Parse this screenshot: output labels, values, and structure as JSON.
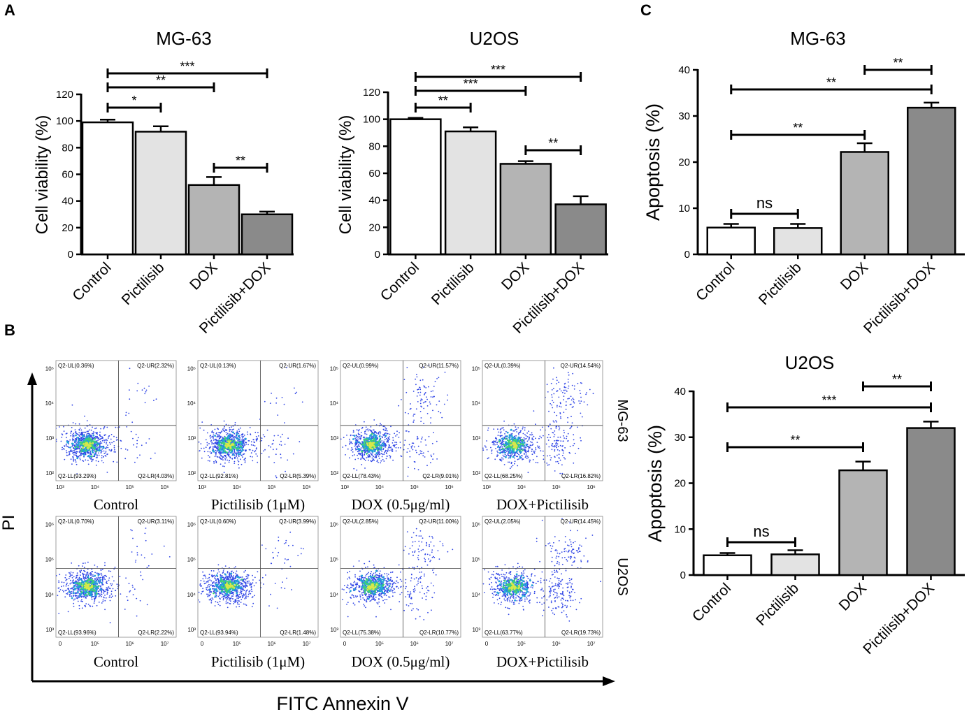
{
  "panel_letters": {
    "a": "A",
    "b": "B",
    "c": "C"
  },
  "flow": {
    "y_axis_label": "PI",
    "x_axis_label": "FITC Annexin V",
    "rows": [
      {
        "cell_line": "MG-63",
        "x_ticks": [
          "10³",
          "10⁴",
          "10⁵",
          "10⁶"
        ],
        "y_ticks": [
          "10²",
          "10³",
          "10⁴",
          "10⁵"
        ],
        "panels": [
          {
            "label": "Control",
            "UL": "Q2-UL(0.36%)",
            "UR": "Q2-UR(2.32%)",
            "LL": "Q2-LL(93.29%)",
            "LR": "Q2-LR(4.03%)"
          },
          {
            "label": "Pictilisib (1μM)",
            "UL": "Q2-UL(0.13%)",
            "UR": "Q2-UR(1.67%)",
            "LL": "Q2-LL(92.81%)",
            "LR": "Q2-LR(5.39%)"
          },
          {
            "label": "DOX (0.5μg/ml)",
            "UL": "Q2-UL(0.99%)",
            "UR": "Q2-UR(11.57%)",
            "LL": "Q2-LL(78.43%)",
            "LR": "Q2-LR(9.01%)"
          },
          {
            "label": "DOX+Pictilisib",
            "UL": "Q2-UL(0.39%)",
            "UR": "Q2-UR(14.54%)",
            "LL": "Q2-LL(68.25%)",
            "LR": "Q2-LR(16.82%)"
          }
        ]
      },
      {
        "cell_line": "U2OS",
        "x_ticks": [
          "0",
          "10⁵",
          "10⁶",
          "10⁷"
        ],
        "y_ticks": [
          "10³",
          "10⁴",
          "10⁵",
          "10⁶"
        ],
        "panels": [
          {
            "label": "Control",
            "UL": "Q2-UL(0.70%)",
            "UR": "Q2-UR(3.11%)",
            "LL": "Q2-LL(93.96%)",
            "LR": "Q2-LR(2.22%)"
          },
          {
            "label": "Pictilisib (1μM)",
            "UL": "Q2-UL(0.60%)",
            "UR": "Q2-UR(3.99%)",
            "LL": "Q2-LL(93.94%)",
            "LR": "Q2-LR(1.48%)"
          },
          {
            "label": "DOX (0.5μg/ml)",
            "UL": "Q2-UL(2.85%)",
            "UR": "Q2-UR(11.00%)",
            "LL": "Q2-LL(75.38%)",
            "LR": "Q2-LR(10.77%)"
          },
          {
            "label": "DOX+Pictilisib",
            "UL": "Q2-UL(2.05%)",
            "UR": "Q2-UR(14.45%)",
            "LL": "Q2-LL(63.77%)",
            "LR": "Q2-LR(19.73%)"
          }
        ]
      }
    ]
  },
  "chart_data": [
    {
      "panel": "A",
      "type": "bar",
      "title": "MG-63",
      "xlabel": "",
      "ylabel": "Cell viability (%)",
      "categories": [
        "Control",
        "Pictilisib",
        "DOX",
        "Pictilisib+DOX"
      ],
      "values": [
        99,
        92,
        52,
        30
      ],
      "errors": [
        2,
        4,
        6,
        2
      ],
      "ylim": [
        0,
        120
      ],
      "yticks": [
        0,
        20,
        40,
        60,
        80,
        100,
        120
      ],
      "bar_colors": [
        "#ffffff",
        "#e3e3e3",
        "#b4b4b4",
        "#8a8a8a"
      ],
      "significance": [
        {
          "from": 0,
          "to": 1,
          "label": "*"
        },
        {
          "from": 0,
          "to": 2,
          "label": "**"
        },
        {
          "from": 0,
          "to": 3,
          "label": "***"
        },
        {
          "from": 2,
          "to": 3,
          "label": "**"
        }
      ]
    },
    {
      "panel": "A",
      "type": "bar",
      "title": "U2OS",
      "xlabel": "",
      "ylabel": "Cell viability (%)",
      "categories": [
        "Control",
        "Pictilisib",
        "DOX",
        "Pictilisib+DOX"
      ],
      "values": [
        100,
        91,
        67,
        37
      ],
      "errors": [
        1,
        3,
        2,
        6
      ],
      "ylim": [
        0,
        120
      ],
      "yticks": [
        0,
        20,
        40,
        60,
        80,
        100,
        120
      ],
      "bar_colors": [
        "#ffffff",
        "#e3e3e3",
        "#b4b4b4",
        "#8a8a8a"
      ],
      "significance": [
        {
          "from": 0,
          "to": 1,
          "label": "**"
        },
        {
          "from": 0,
          "to": 2,
          "label": "***"
        },
        {
          "from": 0,
          "to": 3,
          "label": "***"
        },
        {
          "from": 2,
          "to": 3,
          "label": "**"
        }
      ]
    },
    {
      "panel": "C",
      "type": "bar",
      "title": "MG-63",
      "xlabel": "",
      "ylabel": "Apoptosis (%)",
      "categories": [
        "Control",
        "Pictilisib",
        "DOX",
        "Pictilisib+DOX"
      ],
      "values": [
        5.8,
        5.7,
        22.2,
        31.8
      ],
      "errors": [
        0.8,
        0.9,
        1.9,
        1.1
      ],
      "ylim": [
        0,
        40
      ],
      "yticks": [
        0,
        10,
        20,
        30,
        40
      ],
      "bar_colors": [
        "#ffffff",
        "#e3e3e3",
        "#b4b4b4",
        "#8a8a8a"
      ],
      "significance": [
        {
          "from": 0,
          "to": 1,
          "label": "ns"
        },
        {
          "from": 0,
          "to": 2,
          "label": "**"
        },
        {
          "from": 0,
          "to": 3,
          "label": "**"
        },
        {
          "from": 2,
          "to": 3,
          "label": "**"
        }
      ]
    },
    {
      "panel": "C",
      "type": "bar",
      "title": "U2OS",
      "xlabel": "",
      "ylabel": "Apoptosis (%)",
      "categories": [
        "Control",
        "Pictilisib",
        "DOX",
        "Pictilisib+DOX"
      ],
      "values": [
        4.3,
        4.5,
        22.8,
        32.0
      ],
      "errors": [
        0.5,
        0.9,
        1.9,
        1.4
      ],
      "ylim": [
        0,
        40
      ],
      "yticks": [
        0,
        10,
        20,
        30,
        40
      ],
      "bar_colors": [
        "#ffffff",
        "#e3e3e3",
        "#b4b4b4",
        "#8a8a8a"
      ],
      "significance": [
        {
          "from": 0,
          "to": 1,
          "label": "ns"
        },
        {
          "from": 0,
          "to": 2,
          "label": "**"
        },
        {
          "from": 0,
          "to": 3,
          "label": "***"
        },
        {
          "from": 2,
          "to": 3,
          "label": "**"
        }
      ]
    }
  ]
}
